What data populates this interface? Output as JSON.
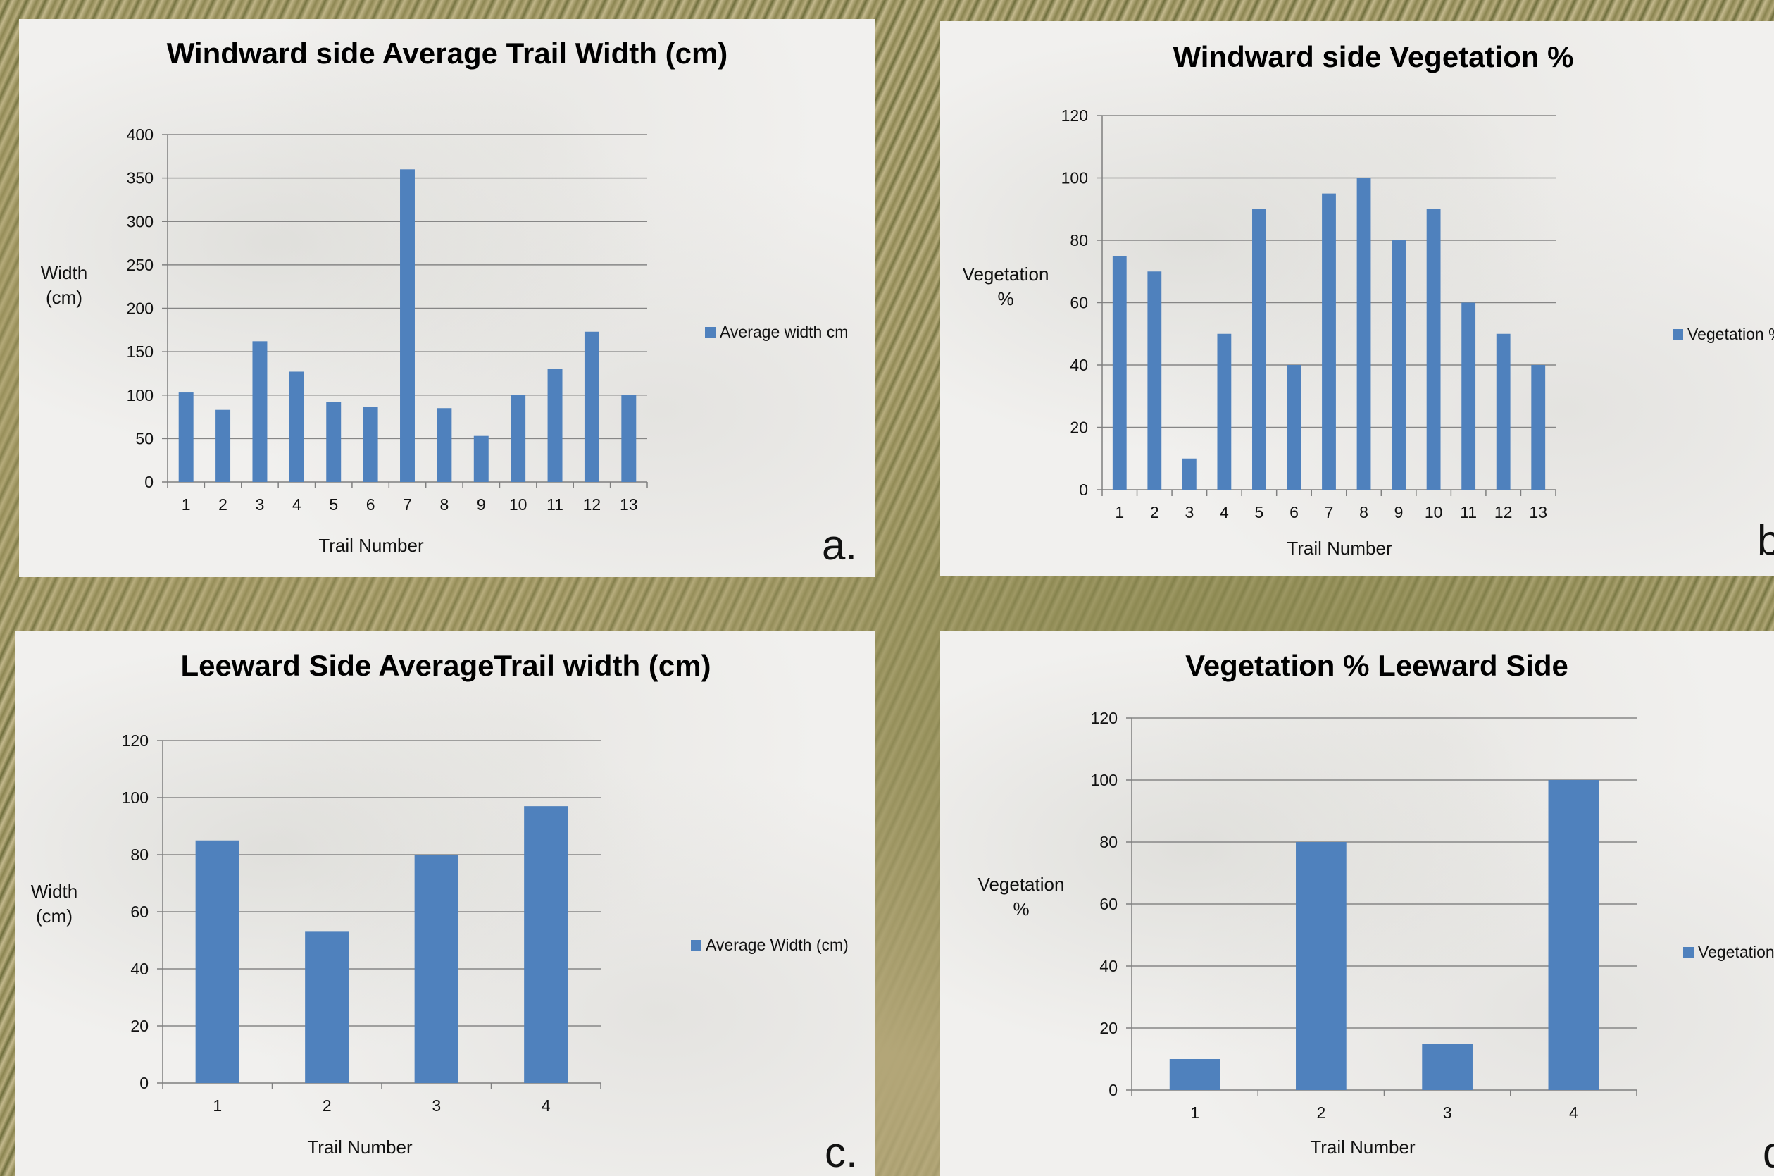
{
  "colors": {
    "bar": "#4f81bd",
    "grid": "#868686",
    "axis": "#7f7f7f"
  },
  "chart_data": [
    {
      "type": "bar",
      "title": "Windward side Average Trail Width (cm)",
      "xlabel": "Trail Number",
      "ylabel": [
        "Width",
        "(cm)"
      ],
      "legend": "Average width cm",
      "corner": "a.",
      "categories": [
        "1",
        "2",
        "3",
        "4",
        "5",
        "6",
        "7",
        "8",
        "9",
        "10",
        "11",
        "12",
        "13"
      ],
      "values": [
        103,
        83,
        162,
        127,
        92,
        86,
        360,
        85,
        53,
        100,
        130,
        173,
        100
      ],
      "ylim": [
        0,
        400
      ],
      "yticks": [
        0,
        50,
        100,
        150,
        200,
        250,
        300,
        350,
        400
      ],
      "grid": true,
      "legend_position": "right"
    },
    {
      "type": "bar",
      "title": "Windward side Vegetation %",
      "xlabel": "Trail Number",
      "ylabel": [
        "Vegetation",
        "%"
      ],
      "legend": "Vegetation %",
      "corner": "b",
      "categories": [
        "1",
        "2",
        "3",
        "4",
        "5",
        "6",
        "7",
        "8",
        "9",
        "10",
        "11",
        "12",
        "13"
      ],
      "values": [
        75,
        70,
        10,
        50,
        90,
        40,
        95,
        100,
        80,
        90,
        60,
        50,
        40
      ],
      "ylim": [
        0,
        120
      ],
      "yticks": [
        0,
        20,
        40,
        60,
        80,
        100,
        120
      ],
      "grid": true,
      "legend_position": "right"
    },
    {
      "type": "bar",
      "title": "Leeward Side AverageTrail width (cm)",
      "xlabel": "Trail Number",
      "ylabel": [
        "Width",
        "(cm)"
      ],
      "legend": "Average Width (cm)",
      "corner": "c.",
      "categories": [
        "1",
        "2",
        "3",
        "4"
      ],
      "values": [
        85,
        53,
        80,
        97
      ],
      "ylim": [
        0,
        120
      ],
      "yticks": [
        0,
        20,
        40,
        60,
        80,
        100,
        120
      ],
      "grid": true,
      "legend_position": "right"
    },
    {
      "type": "bar",
      "title": "Vegetation % Leeward Side",
      "xlabel": "Trail Number",
      "ylabel": [
        "Vegetation",
        "%"
      ],
      "legend": "Vegetation",
      "corner": "d",
      "categories": [
        "1",
        "2",
        "3",
        "4"
      ],
      "values": [
        10,
        80,
        15,
        100
      ],
      "ylim": [
        0,
        120
      ],
      "yticks": [
        0,
        20,
        40,
        60,
        80,
        100,
        120
      ],
      "grid": true,
      "legend_position": "right"
    }
  ]
}
